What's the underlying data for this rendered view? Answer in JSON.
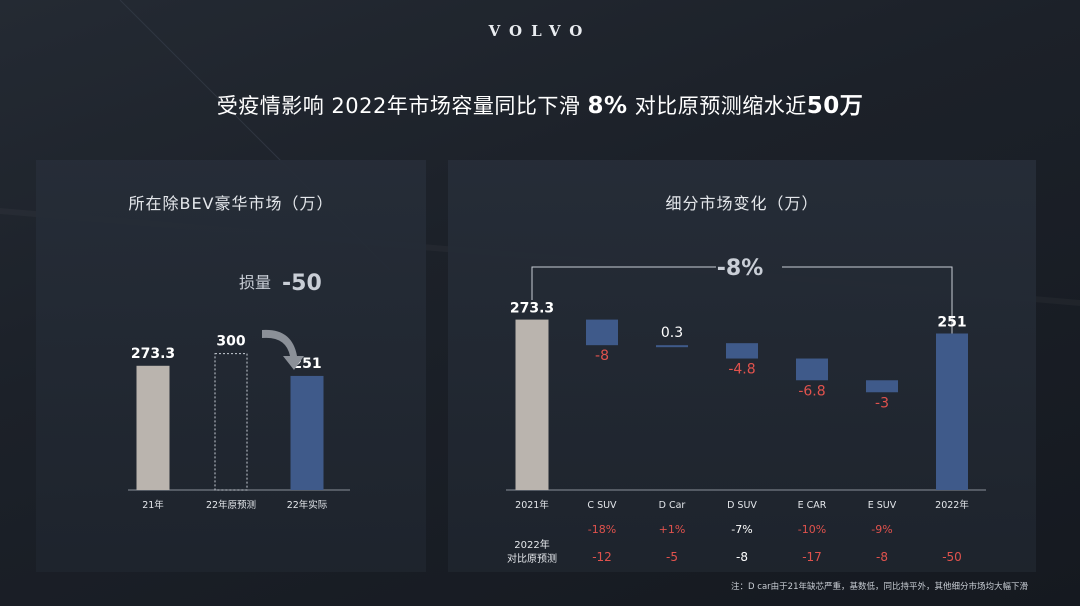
{
  "brand": "VOLVO",
  "headline": {
    "part1": "受疫情影响  2022年市场容量同比下滑 ",
    "part2": "8%",
    "part3": "  对比原预测缩水近",
    "part4": "50万"
  },
  "colors": {
    "gray_bar": "#bab4ae",
    "blue_bar": "#3f5a8a",
    "negative_text": "#e0524d",
    "positive_text": "#ffffff"
  },
  "chart_data": [
    {
      "type": "bar",
      "title": "所在除BEV豪华市场（万）",
      "categories": [
        "21年",
        "22年原预测",
        "22年实际"
      ],
      "values": [
        273.3,
        300,
        251
      ],
      "value_labels": [
        "273.3",
        "300",
        "251"
      ],
      "styles": [
        "solid-gray",
        "dashed-outline",
        "solid-blue"
      ],
      "annotation": {
        "label": "损量",
        "value": "-50"
      }
    },
    {
      "type": "bar",
      "subtype": "waterfall",
      "title": "细分市场变化（万）",
      "categories": [
        "2021年",
        "C SUV",
        "D Car",
        "D SUV",
        "E CAR",
        "E SUV",
        "2022年"
      ],
      "values": [
        273.3,
        -8,
        0.3,
        -4.8,
        -6.8,
        -3,
        251
      ],
      "value_labels": [
        "273.3",
        "-8",
        "0.3",
        "-4.8",
        "-6.8",
        "-3",
        "251"
      ],
      "bracket_label": "-8%",
      "table": {
        "row_header": [
          "2022年",
          "对比原预测"
        ],
        "percent_row": [
          "-18%",
          "+1%",
          "-7%",
          "-10%",
          "-9%"
        ],
        "abs_row": [
          "-12",
          "-5",
          "-8",
          "-17",
          "-8",
          "-50"
        ]
      }
    }
  ],
  "footnote": "注：D car由于21年缺芯严重，基数低，同比持平外，其他细分市场均大幅下滑"
}
